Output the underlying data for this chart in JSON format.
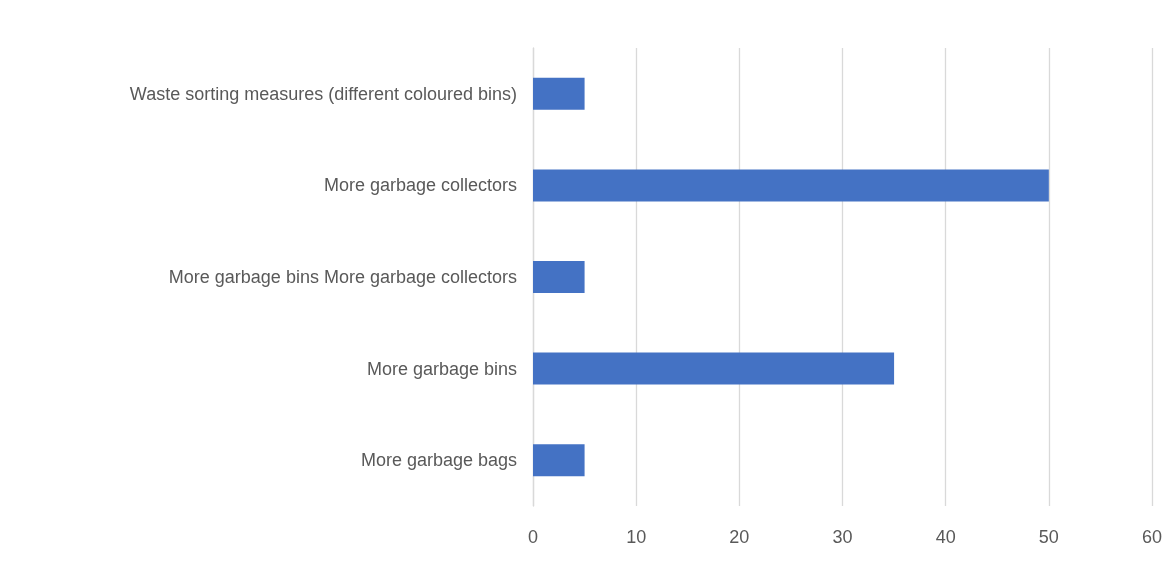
{
  "chart_data": {
    "type": "bar",
    "orientation": "horizontal",
    "categories": [
      "Waste sorting measures (different coloured bins)",
      "More garbage collectors",
      "More garbage bins More garbage collectors",
      "More garbage bins",
      "More garbage bags"
    ],
    "values": [
      5,
      50,
      5,
      35,
      5
    ],
    "color": "#4472c4",
    "xlim": [
      0,
      60
    ],
    "xticks": [
      0,
      10,
      20,
      30,
      40,
      50,
      60
    ],
    "grid": "x"
  }
}
